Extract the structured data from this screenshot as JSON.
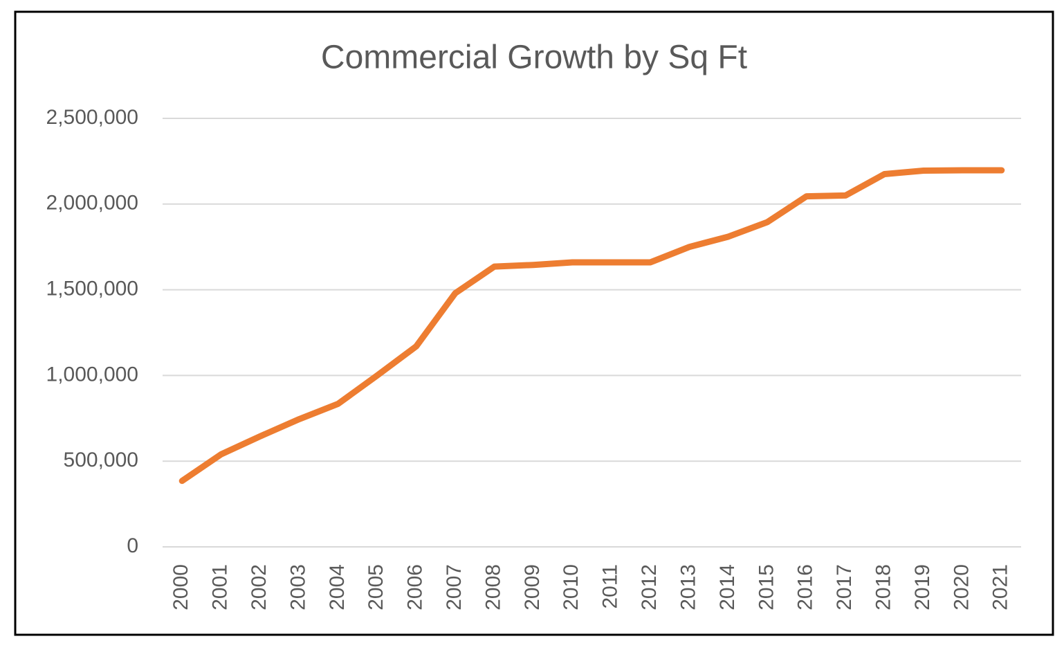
{
  "chart_data": {
    "type": "line",
    "title": "Commercial Growth by Sq Ft",
    "categories": [
      "2000",
      "2001",
      "2002",
      "2003",
      "2004",
      "2005",
      "2006",
      "2007",
      "2008",
      "2009",
      "2010",
      "2011",
      "2012",
      "2013",
      "2014",
      "2015",
      "2016",
      "2017",
      "2018",
      "2019",
      "2020",
      "2021"
    ],
    "values": [
      385000,
      540000,
      645000,
      745000,
      835000,
      1000000,
      1170000,
      1480000,
      1635000,
      1645000,
      1660000,
      1660000,
      1660000,
      1750000,
      1810000,
      1895000,
      2045000,
      2050000,
      2175000,
      2195000,
      2197000,
      2197000
    ],
    "color": "#ed7d31",
    "ylim": [
      0,
      2500000
    ],
    "yticks": [
      0,
      {
        "value": 500000,
        "label": "500,000"
      },
      {
        "value": 1000000,
        "label": "1,000,000"
      },
      {
        "value": 1500000,
        "label": "1,500,000"
      },
      {
        "value": 2000000,
        "label": "2,000,000"
      },
      {
        "value": 2500000,
        "label": "2,500,000"
      }
    ],
    "grid": true
  }
}
